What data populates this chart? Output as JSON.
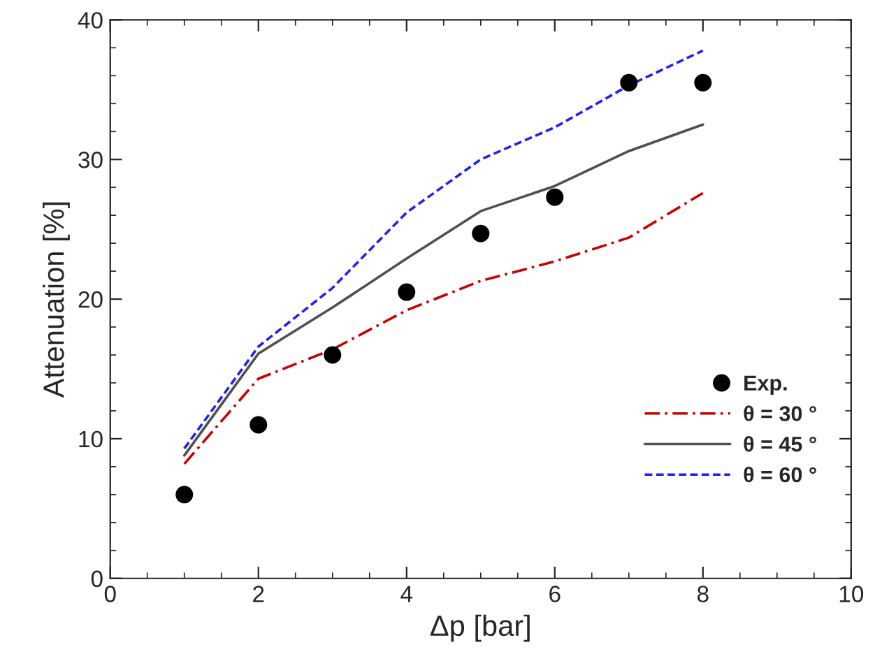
{
  "chart_data": {
    "type": "line",
    "xlabel": "Δp [bar]",
    "ylabel": "Attenuation [%]",
    "x": [
      1,
      2,
      3,
      4,
      5,
      6,
      7,
      8
    ],
    "series": [
      {
        "name": "Exp.",
        "type": "scatter",
        "color": "#000000",
        "marker": "circle",
        "values": [
          6.0,
          11.0,
          16.0,
          20.5,
          24.7,
          27.3,
          35.5,
          35.5
        ]
      },
      {
        "name": "θ = 30 °",
        "color": "#cc0000",
        "line_style": "dashdot",
        "values": [
          8.2,
          14.3,
          16.4,
          19.2,
          21.3,
          22.7,
          24.4,
          27.6
        ]
      },
      {
        "name": "θ = 45 °",
        "color": "#505050",
        "line_style": "solid",
        "values": [
          8.8,
          16.1,
          19.4,
          22.9,
          26.3,
          28.1,
          30.6,
          32.5
        ]
      },
      {
        "name": "θ = 60 °",
        "color": "#2222ee",
        "line_style": "dashed",
        "values": [
          9.3,
          16.6,
          20.8,
          26.2,
          30.0,
          32.3,
          35.3,
          37.8
        ]
      }
    ],
    "xlim": [
      0,
      10
    ],
    "xticks": [
      0,
      2,
      4,
      6,
      8,
      10
    ],
    "ylim": [
      0,
      40
    ],
    "yticks": [
      0,
      10,
      20,
      30,
      40
    ],
    "grid": false,
    "legend": "bottom right"
  }
}
